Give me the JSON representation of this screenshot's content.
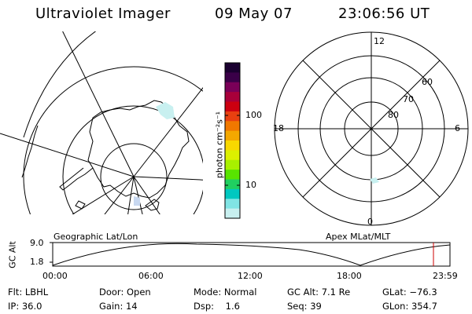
{
  "header": {
    "instrument": "Ultraviolet Imager",
    "date": "09 May 07",
    "time": "23:06:56 UT"
  },
  "colorbar": {
    "unit_label": "photon cm⁻²s⁻¹",
    "tick_100": "100",
    "tick_10": "10",
    "colors": [
      "#1a0030",
      "#3a0048",
      "#7a0058",
      "#a8003a",
      "#cc0010",
      "#e84010",
      "#f07800",
      "#f4a800",
      "#f8d800",
      "#dcf000",
      "#a8f000",
      "#58e400",
      "#20d060",
      "#00c8c0",
      "#80e4e4",
      "#c8f0f0"
    ]
  },
  "left_panel": {
    "projection_label": "Geographic Lat/Lon"
  },
  "right_panel": {
    "projection_label": "Apex MLat/MLT",
    "mlt_12": "12",
    "mlt_18": "18",
    "mlt_6": "6",
    "mlt_0": "0",
    "mlat_60": "60",
    "mlat_70": "70",
    "mlat_80": "80"
  },
  "altitude_plot": {
    "y_label": "GC Alt",
    "y_max": "9.0",
    "y_min": "1.8",
    "ticks": [
      "00:00",
      "06:00",
      "12:00",
      "18:00",
      "23:59"
    ],
    "current_marker_color": "#cc0000"
  },
  "status": {
    "flt": "Flt: LBHL",
    "ip": "IP: 36.0",
    "door": "Door: Open",
    "gain": "Gain: 14",
    "mode": "Mode: Normal",
    "dsp": "Dsp:    1.6",
    "gc_alt": "GC Alt: 7.1 Re",
    "seq": "Seq: 39",
    "glat": "GLat: −76.3",
    "glon": "GLon: 354.7"
  }
}
